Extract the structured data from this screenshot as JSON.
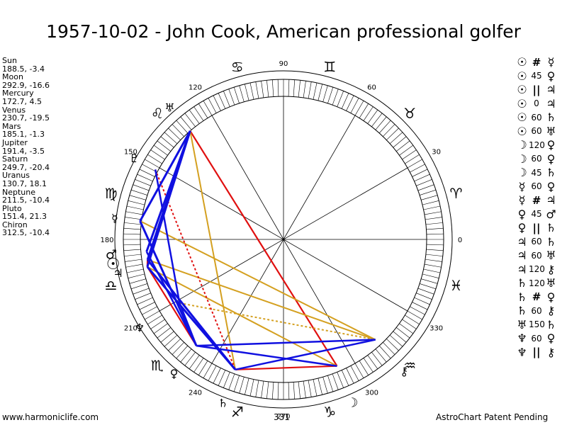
{
  "title": "1957-10-02 - John Cook, American professional golfer",
  "footer": {
    "left": "www.harmoniclife.com",
    "center": "331",
    "right": "AstroChart Patent Pending"
  },
  "planets": [
    {
      "name": "Sun",
      "position": "188.5, -3.4"
    },
    {
      "name": "Moon",
      "position": "292.9, -16.6"
    },
    {
      "name": "Mercury",
      "position": "172.7, 4.5"
    },
    {
      "name": "Venus",
      "position": "230.7, -19.5"
    },
    {
      "name": "Mars",
      "position": "185.1, -1.3"
    },
    {
      "name": "Jupiter",
      "position": "191.4, -3.5"
    },
    {
      "name": "Saturn",
      "position": "249.7, -20.4"
    },
    {
      "name": "Uranus",
      "position": "130.7, 18.1"
    },
    {
      "name": "Neptune",
      "position": "211.5, -10.4"
    },
    {
      "name": "Pluto",
      "position": "151.4, 21.3"
    },
    {
      "name": "Chiron",
      "position": "312.5, -10.4"
    }
  ],
  "degree_labels": [
    "0",
    "30",
    "60",
    "90",
    "120",
    "150",
    "180",
    "210",
    "240",
    "270",
    "300",
    "330"
  ],
  "sign_glyphs": [
    "♈",
    "♉",
    "♊",
    "♋",
    "♌",
    "♍",
    "♎",
    "♏",
    "♐",
    "♑",
    "♒",
    "♓"
  ],
  "planet_glyphs": {
    "sun": "☉",
    "moon": "☽",
    "mercury": "☿",
    "venus": "♀",
    "mars": "♂",
    "jupiter": "♃",
    "saturn": "♄",
    "uranus": "♅",
    "neptune": "♆",
    "pluto": "♇",
    "chiron": "⚷"
  },
  "aspects": [
    {
      "p1": "☉",
      "aspect": "#",
      "p2": "☿"
    },
    {
      "p1": "☉",
      "aspect": "45",
      "p2": "♀"
    },
    {
      "p1": "☉",
      "aspect": "||",
      "p2": "♃"
    },
    {
      "p1": "☉",
      "aspect": "0",
      "p2": "♃"
    },
    {
      "p1": "☉",
      "aspect": "60",
      "p2": "♄"
    },
    {
      "p1": "☉",
      "aspect": "60",
      "p2": "♅"
    },
    {
      "p1": "☽",
      "aspect": "120",
      "p2": "♀"
    },
    {
      "p1": "☽",
      "aspect": "60",
      "p2": "♀"
    },
    {
      "p1": "☽",
      "aspect": "45",
      "p2": "♄"
    },
    {
      "p1": "☿",
      "aspect": "60",
      "p2": "♀"
    },
    {
      "p1": "☿",
      "aspect": "#",
      "p2": "♃"
    },
    {
      "p1": "♀",
      "aspect": "45",
      "p2": "♂"
    },
    {
      "p1": "♀",
      "aspect": "||",
      "p2": "♄"
    },
    {
      "p1": "♃",
      "aspect": "60",
      "p2": "♄"
    },
    {
      "p1": "♃",
      "aspect": "60",
      "p2": "♅"
    },
    {
      "p1": "♃",
      "aspect": "120",
      "p2": "⚷"
    },
    {
      "p1": "♄",
      "aspect": "120",
      "p2": "♅"
    },
    {
      "p1": "♄",
      "aspect": "#",
      "p2": "♀"
    },
    {
      "p1": "♄",
      "aspect": "60",
      "p2": "⚷"
    },
    {
      "p1": "♅",
      "aspect": "150",
      "p2": "♄"
    },
    {
      "p1": "♆",
      "aspect": "60",
      "p2": "♀"
    },
    {
      "p1": "♆",
      "aspect": "||",
      "p2": "⚷"
    }
  ],
  "colors": {
    "hard_aspect": "#e01010",
    "soft_aspect": "#1010e0",
    "minor_aspect": "#d4a020",
    "ring": "#000000"
  }
}
